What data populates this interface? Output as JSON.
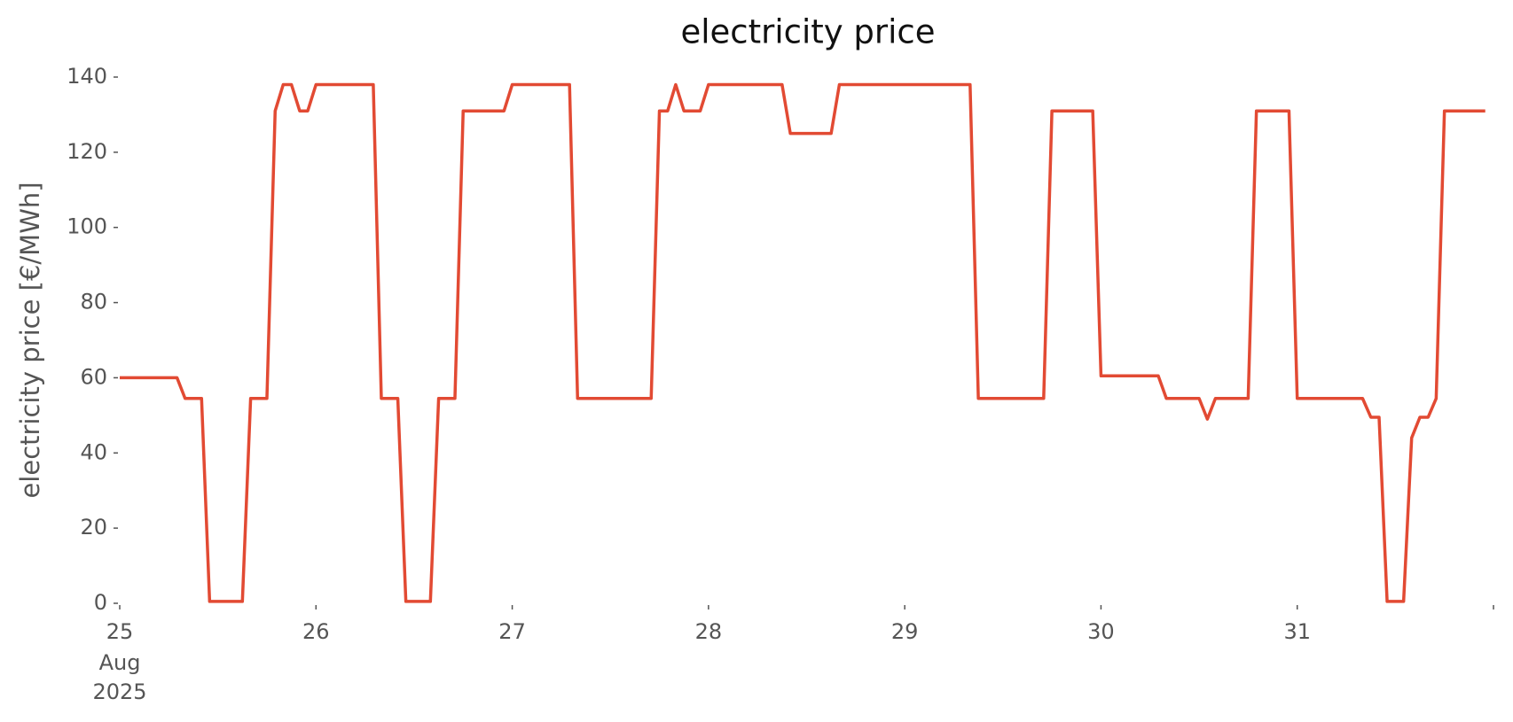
{
  "chart_data": {
    "type": "line",
    "title": "electricity price",
    "ylabel": "electricity price [€/MWh]",
    "x": [
      25,
      25.292,
      25.333,
      25.417,
      25.458,
      25.625,
      25.667,
      25.75,
      25.792,
      25.833,
      25.875,
      25.917,
      25.958,
      26,
      26.292,
      26.333,
      26.417,
      26.458,
      26.583,
      26.625,
      26.708,
      26.75,
      26.958,
      27,
      27.292,
      27.333,
      27.708,
      27.75,
      27.792,
      27.833,
      27.875,
      27.958,
      28,
      28.375,
      28.417,
      28.625,
      28.667,
      29.333,
      29.375,
      29.708,
      29.75,
      29.958,
      30,
      30.292,
      30.333,
      30.5,
      30.542,
      30.583,
      30.75,
      30.792,
      30.958,
      31,
      31.333,
      31.375,
      31.417,
      31.458,
      31.542,
      31.583,
      31.625,
      31.667,
      31.708,
      31.75,
      31.958
    ],
    "values": [
      60,
      60,
      54.5,
      54.5,
      0.5,
      0.5,
      54.5,
      54.5,
      131,
      138,
      138,
      131,
      131,
      138,
      138,
      54.5,
      54.5,
      0.5,
      0.5,
      54.5,
      54.5,
      131,
      131,
      138,
      138,
      54.5,
      54.5,
      131,
      131,
      138,
      131,
      131,
      138,
      138,
      125,
      125,
      138,
      138,
      54.5,
      54.5,
      131,
      131,
      60.5,
      60.5,
      54.5,
      54.5,
      49,
      54.5,
      54.5,
      131,
      131,
      54.5,
      54.5,
      49.5,
      49.5,
      0.5,
      0.5,
      44,
      49.5,
      49.5,
      54.5,
      131,
      131
    ],
    "color": "#e24a33",
    "xlim": [
      25,
      32
    ],
    "xticks": [
      {
        "value": 25,
        "label": "25"
      },
      {
        "value": 26,
        "label": "26"
      },
      {
        "value": 27,
        "label": "27"
      },
      {
        "value": 28,
        "label": "28"
      },
      {
        "value": 29,
        "label": "29"
      },
      {
        "value": 30,
        "label": "30"
      },
      {
        "value": 31,
        "label": "31"
      },
      {
        "value": 32,
        "label": null
      }
    ],
    "xtick_sublabels": [
      "Aug",
      "2025"
    ],
    "ylim": [
      0,
      140
    ],
    "yticks": [
      0,
      20,
      40,
      60,
      80,
      100,
      120,
      140
    ]
  }
}
